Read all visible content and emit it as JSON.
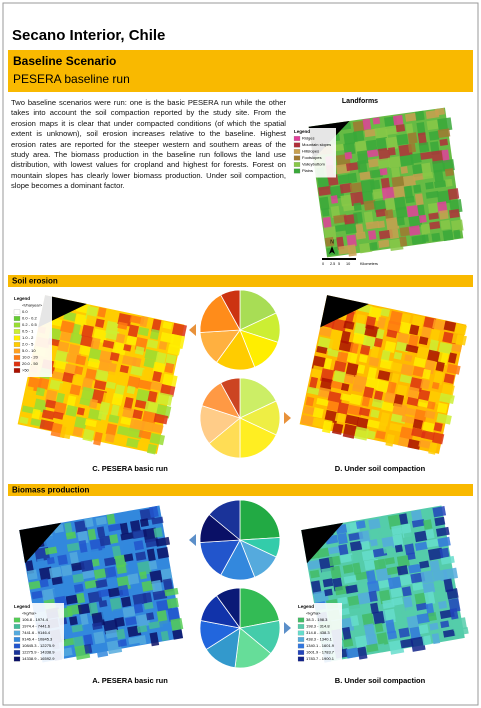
{
  "header": {
    "title": "Secano Interior, Chile",
    "section": "Baseline Scenario",
    "subtitle": "PESERA baseline run"
  },
  "intro": {
    "text": "Two baseline scenarios were run: one is the basic PESERA run while the other takes into account the soil compaction reported by the study site. From the erosion maps it is clear that under compacted conditions (of which the spatial extent is unknown), soil erosion increases relative to the baseline. Highest erosion rates are reported for the steeper western and southern areas of the study area. The biomass production in the baseline run follows the land use distribution, with lowest values for cropland and highest for forests. Forest on mountain slopes has clearly lower biomass production. Under soil compaction, slope becomes a dominant factor."
  },
  "landforms": {
    "title": "Landforms",
    "legend_title": "Legend",
    "items": [
      {
        "label": "Ridges",
        "color": "#e0409a"
      },
      {
        "label": "Mountain slopes",
        "color": "#b0303a"
      },
      {
        "label": "Hillslopes",
        "color": "#c8a050"
      },
      {
        "label": "Footslopes",
        "color": "#a07830"
      },
      {
        "label": "Valleybottom",
        "color": "#88c848"
      },
      {
        "label": "Plains",
        "color": "#3aa83a"
      }
    ],
    "north": "N",
    "scale": [
      "0",
      "2.5",
      "5",
      "10",
      "Kilometers"
    ]
  },
  "soil_erosion": {
    "heading": "Soil erosion",
    "legend_title": "Legend",
    "legend_unit": "<t/ha/year>",
    "items": [
      {
        "label": "0.0",
        "color": "#ffffff"
      },
      {
        "label": "0.0 - 0.2",
        "color": "#66cc33"
      },
      {
        "label": "0.2 - 0.5",
        "color": "#99dd33"
      },
      {
        "label": "0.5 - 1",
        "color": "#ccee33"
      },
      {
        "label": "1.0 - 2",
        "color": "#ffee00"
      },
      {
        "label": "2.0 - 5",
        "color": "#ffcc00"
      },
      {
        "label": "5.0 - 10",
        "color": "#ffa020"
      },
      {
        "label": "10.0 - 20",
        "color": "#ff7a10"
      },
      {
        "label": "20.0 - 50",
        "color": "#dd3311"
      },
      {
        "label": ">50",
        "color": "#aa1100"
      }
    ],
    "pies": [
      {
        "values": [
          18,
          12,
          14,
          16,
          14,
          18,
          8
        ],
        "colors": [
          "#a8dd55",
          "#ccee33",
          "#ffee00",
          "#ffcc00",
          "#ffb040",
          "#ff8c1a",
          "#cc3311"
        ]
      },
      {
        "values": [
          18,
          14,
          18,
          14,
          16,
          12,
          8
        ],
        "colors": [
          "#ccee66",
          "#eeee44",
          "#ffee22",
          "#ffdd55",
          "#ffcc88",
          "#ff9944",
          "#cc4422"
        ]
      }
    ],
    "captions": [
      "C.   PESERA basic run",
      "D.   Under soil compaction"
    ]
  },
  "biomass": {
    "heading": "Biomass production",
    "legends": [
      {
        "title": "Legend",
        "unit": "<kg/ha>",
        "items": [
          {
            "label": "106.8 - 1974.4",
            "color": "#55cc55"
          },
          {
            "label": "1974.4 - 7441.6",
            "color": "#44bb99"
          },
          {
            "label": "7441.6 - 9146.4",
            "color": "#55aadd"
          },
          {
            "label": "9146.4 - 10845.3",
            "color": "#3388dd"
          },
          {
            "label": "10845.3 - 12275.9",
            "color": "#2255cc"
          },
          {
            "label": "12275.9 - 14338.9",
            "color": "#1a3399"
          },
          {
            "label": "14338.9 - 16592.9",
            "color": "#0a1066"
          }
        ]
      },
      {
        "title": "Legend",
        "unit": "<kg/ha>",
        "items": [
          {
            "label": "38.3 - 198.3",
            "color": "#44bb66"
          },
          {
            "label": "198.3 - 314.8",
            "color": "#55ccaa"
          },
          {
            "label": "314.8 - 438.3",
            "color": "#66ddcc"
          },
          {
            "label": "438.3 - 1340.1",
            "color": "#55aadd"
          },
          {
            "label": "1340.1 - 1601.9",
            "color": "#3377dd"
          },
          {
            "label": "1601.9 - 1783.7",
            "color": "#2244bb"
          },
          {
            "label": "1783.7 - 1900.1",
            "color": "#112288"
          }
        ]
      }
    ],
    "pies": [
      {
        "values": [
          24,
          8,
          12,
          14,
          16,
          12,
          14
        ],
        "colors": [
          "#22aa44",
          "#33ccaa",
          "#55aadd",
          "#3388dd",
          "#2255cc",
          "#0a1066",
          "#1a3399"
        ]
      },
      {
        "values": [
          22,
          14,
          16,
          14,
          12,
          12,
          10
        ],
        "colors": [
          "#33bb55",
          "#44ccaa",
          "#66dd99",
          "#3399cc",
          "#2266dd",
          "#1133aa",
          "#0a1a77"
        ]
      }
    ],
    "captions": [
      "A.   PESERA basic run",
      "B.   Under soil compaction"
    ]
  }
}
